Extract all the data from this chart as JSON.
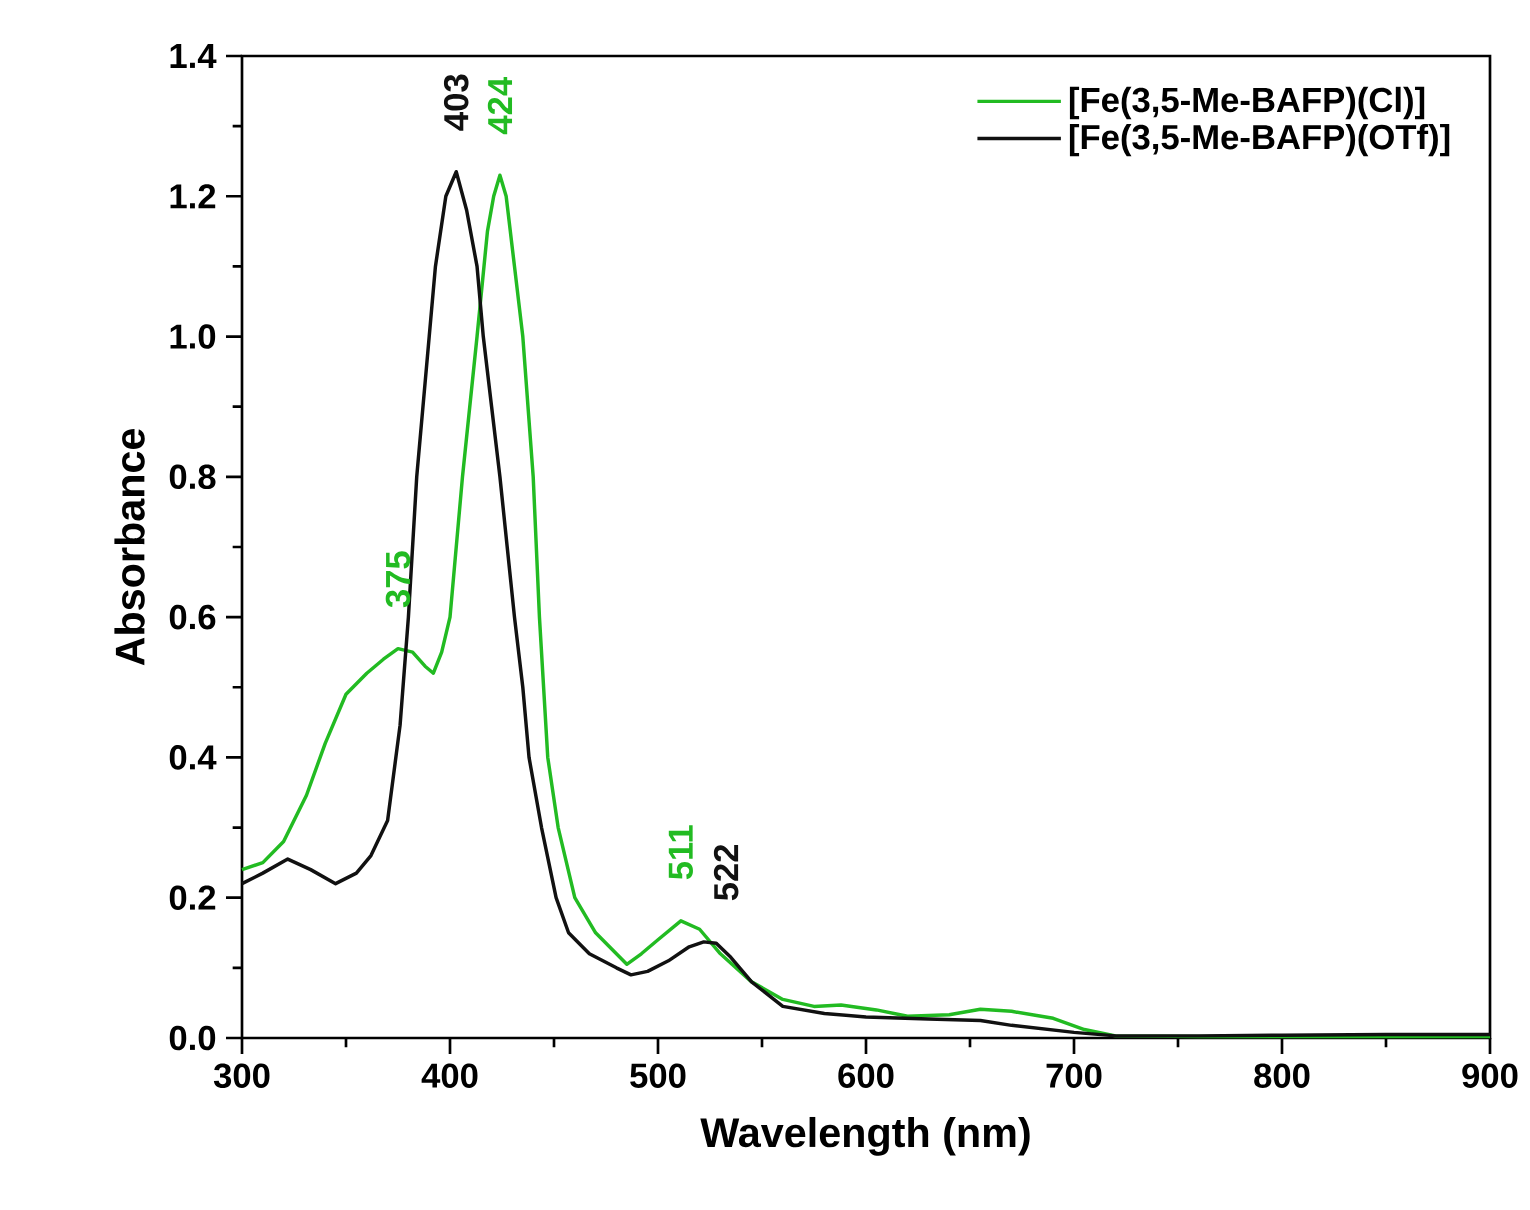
{
  "chart_data": {
    "type": "line",
    "xlabel": "Wavelength (nm)",
    "ylabel": "Absorbance",
    "xlim": [
      300,
      900
    ],
    "xticks": [
      300,
      400,
      500,
      600,
      700,
      800,
      900
    ],
    "ylim": [
      0,
      1.4
    ],
    "yticks": [
      {
        "value": 0,
        "label": "0.0"
      },
      0.2,
      0.4,
      0.6,
      0.8,
      {
        "value": 1,
        "label": "1.0"
      },
      1.2,
      1.4
    ],
    "legend": "top right",
    "marker": "none",
    "line_style": "solid",
    "series": [
      {
        "name": "[Fe(3,5-Me-BAFP)(Cl)]",
        "color": "#22bb22",
        "x": [
          300,
          310,
          320,
          331,
          340,
          350,
          360,
          368,
          375,
          382,
          388,
          392,
          396,
          400,
          406,
          413,
          418,
          421,
          424,
          427,
          431,
          435,
          440,
          443,
          447,
          452,
          460,
          470,
          480,
          485,
          492,
          500,
          511,
          520,
          530,
          545,
          560,
          575,
          588,
          605,
          620,
          640,
          655,
          670,
          690,
          705,
          720,
          760,
          800,
          850,
          900
        ],
        "values": [
          0.24,
          0.25,
          0.28,
          0.346,
          0.42,
          0.49,
          0.52,
          0.54,
          0.555,
          0.55,
          0.53,
          0.52,
          0.55,
          0.6,
          0.8,
          1.0,
          1.15,
          1.2,
          1.23,
          1.2,
          1.1,
          1.0,
          0.8,
          0.6,
          0.4,
          0.3,
          0.2,
          0.15,
          0.12,
          0.105,
          0.12,
          0.14,
          0.167,
          0.155,
          0.12,
          0.08,
          0.055,
          0.045,
          0.047,
          0.04,
          0.031,
          0.033,
          0.041,
          0.038,
          0.028,
          0.012,
          0.003,
          0.002,
          0.002,
          0.002,
          0.002
        ]
      },
      {
        "name": "[Fe(3,5-Me-BAFP)(OTf)]",
        "color": "#111111",
        "x": [
          300,
          310,
          322,
          333,
          345,
          355,
          362,
          370,
          376,
          380,
          384,
          390,
          393,
          398,
          403,
          408,
          413,
          416,
          420,
          424,
          431,
          435,
          438,
          444,
          451,
          457,
          467,
          480,
          487,
          495,
          505,
          515,
          522,
          528,
          535,
          545,
          560,
          580,
          600,
          630,
          655,
          670,
          700,
          720,
          760,
          800,
          850,
          900
        ],
        "values": [
          0.22,
          0.235,
          0.255,
          0.24,
          0.22,
          0.235,
          0.26,
          0.31,
          0.446,
          0.6,
          0.8,
          1.0,
          1.1,
          1.2,
          1.235,
          1.18,
          1.1,
          1.0,
          0.9,
          0.8,
          0.6,
          0.5,
          0.4,
          0.3,
          0.2,
          0.15,
          0.12,
          0.1,
          0.09,
          0.095,
          0.11,
          0.13,
          0.137,
          0.135,
          0.115,
          0.08,
          0.045,
          0.035,
          0.03,
          0.027,
          0.025,
          0.018,
          0.008,
          0.003,
          0.003,
          0.004,
          0.005,
          0.005
        ]
      }
    ],
    "annotations": [
      {
        "text": "403",
        "x": 403,
        "y": 1.235
      },
      {
        "text": "424",
        "x": 424,
        "y": 1.23
      },
      {
        "text": "375",
        "x": 375,
        "y": 0.555
      },
      {
        "text": "511",
        "x": 511,
        "y": 0.167
      },
      {
        "text": "522",
        "x": 522,
        "y": 0.137
      }
    ]
  }
}
